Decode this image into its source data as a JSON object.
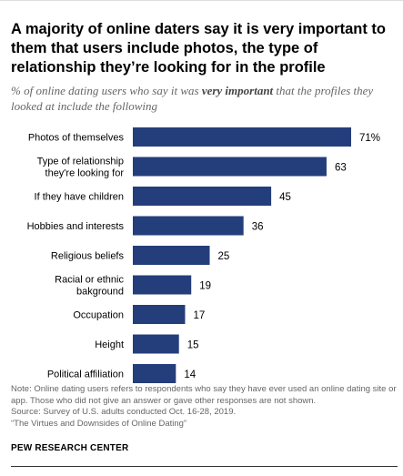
{
  "title": "A majority of online daters say it is very important to them that users include photos, the type of relationship they’re looking for in the profile",
  "subtitle_pre": "% of online dating users who say it was ",
  "subtitle_em": "very important",
  "subtitle_post": " that the profiles they looked at include the following",
  "notes": {
    "note": "Note: Online dating users refers to respondents who say they have ever used an online dating site or app. Those who did not give an answer or gave other responses are not shown.",
    "source": "Source: Survey of U.S. adults conducted Oct. 16-28, 2019.",
    "report": "“The Virtues and Downsides of Online Dating”"
  },
  "org": "PEW RESEARCH CENTER",
  "colors": {
    "bar": "#233e7b",
    "label": "#000000"
  },
  "chart_data": {
    "type": "bar",
    "orientation": "horizontal",
    "categories": [
      [
        "Photos of themselves"
      ],
      [
        "Type of relationship",
        "they're looking for"
      ],
      [
        "If they have children"
      ],
      [
        "Hobbies and interests"
      ],
      [
        "Religious beliefs"
      ],
      [
        "Racial or ethnic",
        "bakground"
      ],
      [
        "Occupation"
      ],
      [
        "Height"
      ],
      [
        "Political affiliation"
      ]
    ],
    "values": [
      71,
      63,
      45,
      36,
      25,
      19,
      17,
      15,
      14
    ],
    "value_labels": [
      "71%",
      "63",
      "45",
      "36",
      "25",
      "19",
      "17",
      "15",
      "14"
    ],
    "xlim": [
      0,
      71
    ]
  }
}
